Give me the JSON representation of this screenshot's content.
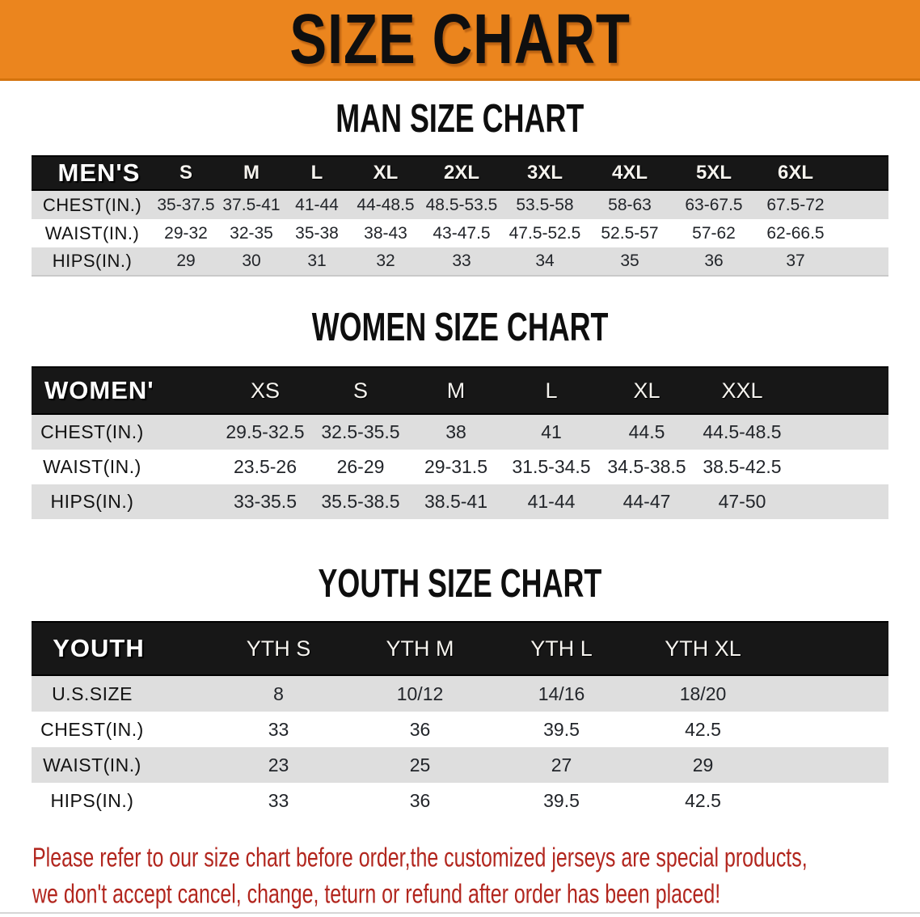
{
  "banner": {
    "title": "SIZE CHART",
    "bg_color": "#EB851E",
    "text_color": "#0f0f0f"
  },
  "sections": [
    {
      "heading": "MAN SIZE CHART",
      "table": {
        "label_header": "MEN'S",
        "size_headers": [
          "S",
          "M",
          "L",
          "XL",
          "2XL",
          "3XL",
          "4XL",
          "5XL",
          "6XL"
        ],
        "rows": [
          {
            "label": "CHEST(IN.)",
            "values": [
              "35-37.5",
              "37.5-41",
              "41-44",
              "44-48.5",
              "48.5-53.5",
              "53.5-58",
              "58-63",
              "63-67.5",
              "67.5-72"
            ]
          },
          {
            "label": "WAIST(IN.)",
            "values": [
              "29-32",
              "32-35",
              "35-38",
              "38-43",
              "43-47.5",
              "47.5-52.5",
              "52.5-57",
              "57-62",
              "62-66.5"
            ]
          },
          {
            "label": "HIPS(IN.)",
            "values": [
              "29",
              "30",
              "31",
              "32",
              "33",
              "34",
              "35",
              "36",
              "37"
            ]
          }
        ]
      }
    },
    {
      "heading": "WOMEN SIZE CHART",
      "table": {
        "label_header": "WOMEN'S",
        "size_headers": [
          "XS",
          "S",
          "M",
          "L",
          "XL",
          "XXL"
        ],
        "rows": [
          {
            "label": "CHEST(IN.)",
            "values": [
              "29.5-32.5",
              "32.5-35.5",
              "38",
              "41",
              "44.5",
              "44.5-48.5"
            ]
          },
          {
            "label": "WAIST(IN.)",
            "values": [
              "23.5-26",
              "26-29",
              "29-31.5",
              "31.5-34.5",
              "34.5-38.5",
              "38.5-42.5"
            ]
          },
          {
            "label": "HIPS(IN.)",
            "values": [
              "33-35.5",
              "35.5-38.5",
              "38.5-41",
              "41-44",
              "44-47",
              "47-50"
            ]
          }
        ]
      }
    },
    {
      "heading": "YOUTH SIZE CHART",
      "table": {
        "label_header": "YOUTH",
        "size_headers": [
          "YTH S",
          "YTH M",
          "YTH L",
          "YTH XL"
        ],
        "rows": [
          {
            "label": "U.S.SIZE",
            "values": [
              "8",
              "10/12",
              "14/16",
              "18/20"
            ]
          },
          {
            "label": "CHEST(IN.)",
            "values": [
              "33",
              "36",
              "39.5",
              "42.5"
            ]
          },
          {
            "label": "WAIST(IN.)",
            "values": [
              "23",
              "25",
              "27",
              "29"
            ]
          },
          {
            "label": "HIPS(IN.)",
            "values": [
              "33",
              "36",
              "39.5",
              "42.5"
            ]
          }
        ]
      }
    }
  ],
  "disclaimer": {
    "line1": "Please refer to our size chart before order,the customized jerseys are special products,",
    "line2": "we don't accept cancel, change, teturn or refund after order has been placed!",
    "color": "#B2261E"
  },
  "colors": {
    "header_bar": "#171717",
    "row_gray": "#dedede",
    "row_white": "#ffffff"
  }
}
